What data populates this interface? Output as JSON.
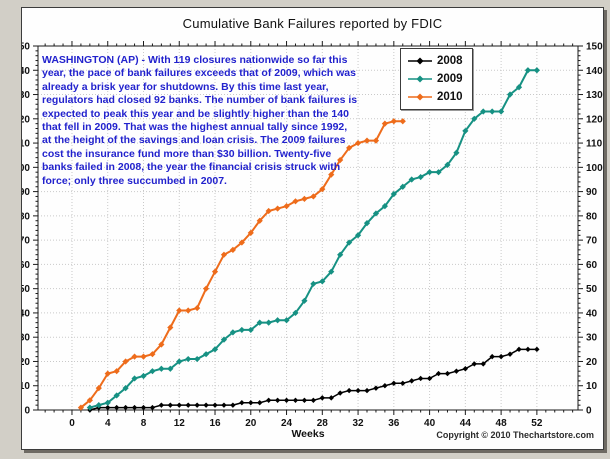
{
  "window": {
    "background_color": "#d2cfc7",
    "panel_border_color": "#3c3c3c"
  },
  "chart": {
    "title": "Cumulative Bank Failures reported by FDIC",
    "copyright": "Copyright © 2010 Thechartstore.com",
    "annotation": "WASHINGTON (AP) - With 119 closures nationwide so far this year, the pace of bank failures exceeds that of 2009, which was already a brisk year for shutdowns. By this time last year, regulators had closed 92 banks.  The number of bank failures is expected to peak this year and be slightly higher than the 140 that fell in 2009. That was the highest annual tally since 1992, at the height of the savings and loan crisis. The 2009 failures cost the insurance fund more than $30 billion. Twenty-five banks failed in 2008, the year the financial crisis struck with force; only three succumbed in 2007.",
    "annotation_color": "#2222cd"
  },
  "chart_data": {
    "type": "line",
    "title": "Cumulative Bank Failures reported by FDIC",
    "xlabel": "Weeks",
    "ylabel": "",
    "xlim": [
      -3.8,
      56.6
    ],
    "ylim": [
      0,
      150
    ],
    "x_ticks": [
      0,
      4,
      8,
      12,
      16,
      20,
      24,
      28,
      32,
      36,
      40,
      44,
      48,
      52
    ],
    "y_ticks": [
      0,
      10,
      20,
      30,
      40,
      50,
      60,
      70,
      80,
      90,
      100,
      110,
      120,
      130,
      140,
      150
    ],
    "x_minor_step": 1,
    "y_minor_step": 2,
    "grid": true,
    "grid_color": "#c9c9c9",
    "axis_color": "#1a1a1a",
    "legend_position": "top-right-inside",
    "series": [
      {
        "name": "2008",
        "color": "#000000",
        "weeks": [
          2,
          3,
          4,
          5,
          6,
          7,
          8,
          9,
          10,
          11,
          12,
          13,
          14,
          15,
          16,
          17,
          18,
          19,
          20,
          21,
          22,
          23,
          24,
          25,
          26,
          27,
          28,
          29,
          30,
          31,
          32,
          33,
          34,
          35,
          36,
          37,
          38,
          39,
          40,
          41,
          42,
          43,
          44,
          45,
          46,
          47,
          48,
          49,
          50,
          51,
          52
        ],
        "values": [
          0,
          1,
          1,
          1,
          1,
          1,
          1,
          1,
          2,
          2,
          2,
          2,
          2,
          2,
          2,
          2,
          2,
          3,
          3,
          3,
          4,
          4,
          4,
          4,
          4,
          4,
          5,
          5,
          7,
          8,
          8,
          8,
          9,
          10,
          11,
          11,
          12,
          13,
          13,
          15,
          15,
          16,
          17,
          19,
          19,
          22,
          22,
          23,
          25,
          25,
          25
        ]
      },
      {
        "name": "2009",
        "color": "#169183",
        "weeks": [
          2,
          3,
          4,
          5,
          6,
          7,
          8,
          9,
          10,
          11,
          12,
          13,
          14,
          15,
          16,
          17,
          18,
          19,
          20,
          21,
          22,
          23,
          24,
          25,
          26,
          27,
          28,
          29,
          30,
          31,
          32,
          33,
          34,
          35,
          36,
          37,
          38,
          39,
          40,
          41,
          42,
          43,
          44,
          45,
          46,
          47,
          48,
          49,
          50,
          51,
          52
        ],
        "values": [
          1,
          2,
          3,
          6,
          9,
          13,
          14,
          16,
          17,
          17,
          20,
          21,
          21,
          23,
          25,
          29,
          32,
          33,
          33,
          36,
          36,
          37,
          37,
          40,
          45,
          52,
          53,
          57,
          64,
          69,
          72,
          77,
          81,
          84,
          89,
          92,
          95,
          96,
          98,
          98,
          101,
          106,
          115,
          120,
          123,
          123,
          123,
          130,
          133,
          140,
          140
        ]
      },
      {
        "name": "2010",
        "color": "#ee6c1b",
        "weeks": [
          1,
          2,
          3,
          4,
          5,
          6,
          7,
          8,
          9,
          10,
          11,
          12,
          13,
          14,
          15,
          16,
          17,
          18,
          19,
          20,
          21,
          22,
          23,
          24,
          25,
          26,
          27,
          28,
          29,
          30,
          31,
          32,
          33,
          34,
          35,
          36,
          37
        ],
        "values": [
          1,
          4,
          9,
          15,
          16,
          20,
          22,
          22,
          23,
          27,
          34,
          41,
          41,
          42,
          50,
          57,
          64,
          66,
          69,
          73,
          78,
          82,
          83,
          84,
          86,
          87,
          88,
          91,
          97,
          103,
          108,
          110,
          111,
          111,
          118,
          119,
          119
        ]
      }
    ]
  }
}
